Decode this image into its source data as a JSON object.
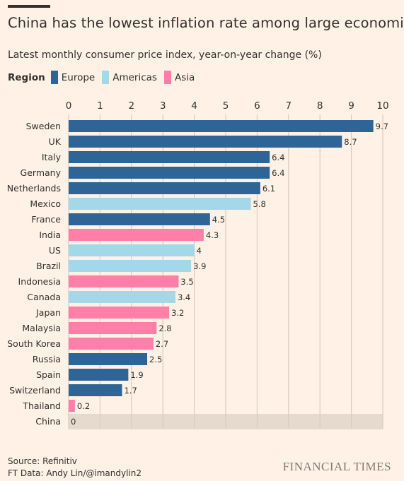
{
  "header": {
    "title": "China has the lowest inflation rate among large economies",
    "subtitle": "Latest monthly consumer price index, year-on-year change (%)"
  },
  "legend": {
    "title": "Region",
    "items": [
      {
        "label": "Europe",
        "color": "#2e6496"
      },
      {
        "label": "Americas",
        "color": "#a4d7e8"
      },
      {
        "label": "Asia",
        "color": "#ff7fa9"
      }
    ]
  },
  "chart_data": {
    "type": "bar",
    "orientation": "horizontal",
    "title": "China has the lowest inflation rate among large economies",
    "subtitle": "Latest monthly consumer price index, year-on-year change (%)",
    "xlim": [
      0,
      10
    ],
    "xticks": [
      "0",
      "1",
      "2",
      "3",
      "4",
      "5",
      "6",
      "7",
      "8",
      "9",
      "10"
    ],
    "grid": true,
    "legend_position": "top-left",
    "highlight": "China",
    "categories": [
      "Sweden",
      "UK",
      "Italy",
      "Germany",
      "Netherlands",
      "Mexico",
      "France",
      "India",
      "US",
      "Brazil",
      "Indonesia",
      "Canada",
      "Japan",
      "Malaysia",
      "South Korea",
      "Russia",
      "Spain",
      "Switzerland",
      "Thailand",
      "China"
    ],
    "values": [
      9.7,
      8.7,
      6.4,
      6.4,
      6.1,
      5.8,
      4.5,
      4.3,
      4,
      3.9,
      3.5,
      3.4,
      3.2,
      2.8,
      2.7,
      2.5,
      1.9,
      1.7,
      0.2,
      0
    ],
    "labels": [
      "9.7",
      "8.7",
      "6.4",
      "6.4",
      "6.1",
      "5.8",
      "4.5",
      "4.3",
      "4",
      "3.9",
      "3.5",
      "3.4",
      "3.2",
      "2.8",
      "2.7",
      "2.5",
      "1.9",
      "1.7",
      "0.2",
      "0"
    ],
    "regions": [
      "Europe",
      "Europe",
      "Europe",
      "Europe",
      "Europe",
      "Americas",
      "Europe",
      "Asia",
      "Americas",
      "Americas",
      "Asia",
      "Americas",
      "Asia",
      "Asia",
      "Asia",
      "Europe",
      "Europe",
      "Europe",
      "Asia",
      "Asia"
    ]
  },
  "footer": {
    "source": "Source: Refinitiv",
    "credit": "FT Data: Andy Lin/@imandylin2",
    "brand": "FINANCIAL TIMES"
  }
}
